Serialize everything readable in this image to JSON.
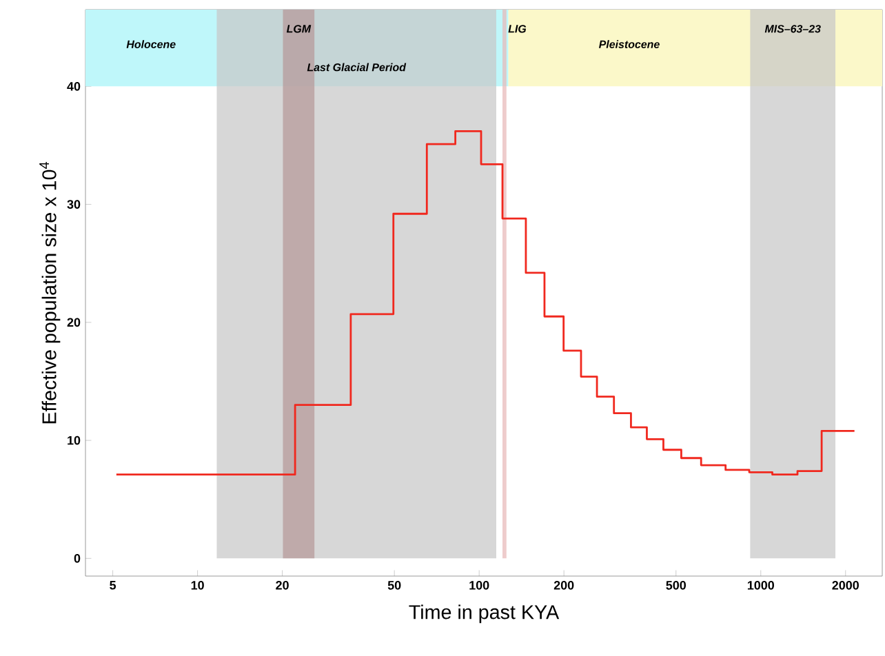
{
  "chart_data": {
    "type": "step",
    "xlabel": "Time in past KYA",
    "ylabel": "Effective population size x 10$^{4}$",
    "log": "x",
    "xlim": [
      4,
      2700
    ],
    "ylim": [
      -1.5,
      46.5
    ],
    "xticks": [
      5,
      10,
      20,
      50,
      100,
      200,
      500,
      1000,
      2000
    ],
    "yticks": [
      0,
      10,
      20,
      30,
      40
    ],
    "grid": false,
    "marker": "none",
    "line_style": "solid",
    "series": [
      {
        "color": "#f0281e",
        "x": [
          5.15,
          22.2,
          35,
          49.6,
          65.2,
          82.3,
          101.6,
          121,
          146.5,
          170.6,
          199.5,
          230,
          262,
          301,
          346,
          394,
          451,
          522,
          614,
          750,
          910,
          1099,
          1350,
          1645,
          2151
        ],
        "values": [
          7.1,
          13.0,
          20.7,
          29.2,
          35.1,
          36.2,
          33.4,
          28.8,
          24.2,
          20.5,
          17.6,
          15.4,
          13.7,
          12.3,
          11.1,
          10.1,
          9.2,
          8.5,
          7.9,
          7.5,
          7.3,
          7.1,
          7.4,
          10.8,
          10.8
        ]
      }
    ],
    "bands": [
      {
        "axis": "x",
        "from": 4,
        "to": 127,
        "color": "#bff7fa",
        "label": "Holocene"
      },
      {
        "axis": "x",
        "from": 127,
        "to": 2700,
        "color": "#fbf8c9",
        "label": "Pleistocene"
      },
      {
        "axis": "x",
        "from": 11.7,
        "to": 115,
        "color": "#c8c8c8",
        "label": "Last Glacial Period"
      },
      {
        "axis": "x",
        "from": 20.1,
        "to": 26,
        "color": "#b59898",
        "label": "LGM"
      },
      {
        "axis": "x",
        "from": 121,
        "to": 125,
        "color": "#e8b8b8",
        "label": "LIG"
      },
      {
        "axis": "x",
        "from": 917,
        "to": 1841,
        "color": "#c8c8c8",
        "label": "MIS–63–23"
      }
    ]
  }
}
